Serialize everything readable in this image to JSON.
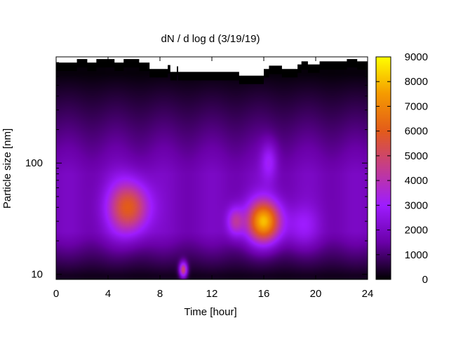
{
  "chart_data": {
    "type": "heatmap",
    "title": "dN / d log d (3/19/19)",
    "xlabel": "Time [hour]",
    "ylabel": "Particle size [nm]",
    "xlim": [
      0,
      24
    ],
    "x_ticks": [
      0,
      4,
      8,
      12,
      16,
      20,
      24
    ],
    "y_scale": "log",
    "ylim": [
      9,
      900
    ],
    "y_ticks": [
      10,
      100
    ],
    "colorbar": {
      "min": 0,
      "max": 9000,
      "ticks": [
        0,
        1000,
        2000,
        3000,
        4000,
        5000,
        6000,
        7000,
        8000,
        9000
      ],
      "colors": [
        "#000000",
        "#6a00a8",
        "#9e1cff",
        "#c43c8e",
        "#e35b1a",
        "#f59a00",
        "#ffff00"
      ]
    },
    "features": [
      {
        "description": "mode",
        "x": 5.6,
        "y": 40,
        "peak": 6200
      },
      {
        "description": "mode",
        "x": 16.0,
        "y": 30,
        "peak": 8100
      },
      {
        "description": "mode",
        "x": 13.8,
        "y": 30,
        "peak": 4300
      },
      {
        "description": "mode",
        "x": 9.8,
        "y": 11,
        "peak": 5000
      },
      {
        "description": "mode",
        "x": 16.4,
        "y": 100,
        "peak": 3200
      },
      {
        "description": "mode",
        "x": 19.0,
        "y": 28,
        "peak": 3000
      }
    ],
    "background_level": 2000,
    "upper_cutoff_nm": [
      {
        "x": 0.0,
        "y": 800
      },
      {
        "x": 1.6,
        "y": 800
      },
      {
        "x": 1.6,
        "y": 860
      },
      {
        "x": 2.4,
        "y": 860
      },
      {
        "x": 2.4,
        "y": 800
      },
      {
        "x": 3.1,
        "y": 800
      },
      {
        "x": 3.1,
        "y": 860
      },
      {
        "x": 4.5,
        "y": 860
      },
      {
        "x": 4.5,
        "y": 800
      },
      {
        "x": 5.2,
        "y": 800
      },
      {
        "x": 5.2,
        "y": 860
      },
      {
        "x": 6.4,
        "y": 860
      },
      {
        "x": 6.4,
        "y": 800
      },
      {
        "x": 7.2,
        "y": 800
      },
      {
        "x": 7.2,
        "y": 700
      },
      {
        "x": 8.6,
        "y": 700
      },
      {
        "x": 8.6,
        "y": 760
      },
      {
        "x": 8.8,
        "y": 760
      },
      {
        "x": 8.8,
        "y": 660
      },
      {
        "x": 9.3,
        "y": 660
      },
      {
        "x": 9.3,
        "y": 740
      },
      {
        "x": 9.4,
        "y": 740
      },
      {
        "x": 9.4,
        "y": 660
      },
      {
        "x": 14.1,
        "y": 660
      },
      {
        "x": 14.1,
        "y": 610
      },
      {
        "x": 16.0,
        "y": 610
      },
      {
        "x": 16.0,
        "y": 700
      },
      {
        "x": 16.4,
        "y": 700
      },
      {
        "x": 16.4,
        "y": 750
      },
      {
        "x": 17.4,
        "y": 750
      },
      {
        "x": 17.4,
        "y": 700
      },
      {
        "x": 18.6,
        "y": 700
      },
      {
        "x": 18.6,
        "y": 770
      },
      {
        "x": 18.9,
        "y": 770
      },
      {
        "x": 18.9,
        "y": 820
      },
      {
        "x": 19.4,
        "y": 820
      },
      {
        "x": 19.4,
        "y": 770
      },
      {
        "x": 20.3,
        "y": 770
      },
      {
        "x": 20.3,
        "y": 820
      },
      {
        "x": 22.4,
        "y": 820
      },
      {
        "x": 22.4,
        "y": 860
      },
      {
        "x": 23.2,
        "y": 860
      },
      {
        "x": 23.2,
        "y": 820
      },
      {
        "x": 24.0,
        "y": 820
      }
    ]
  }
}
